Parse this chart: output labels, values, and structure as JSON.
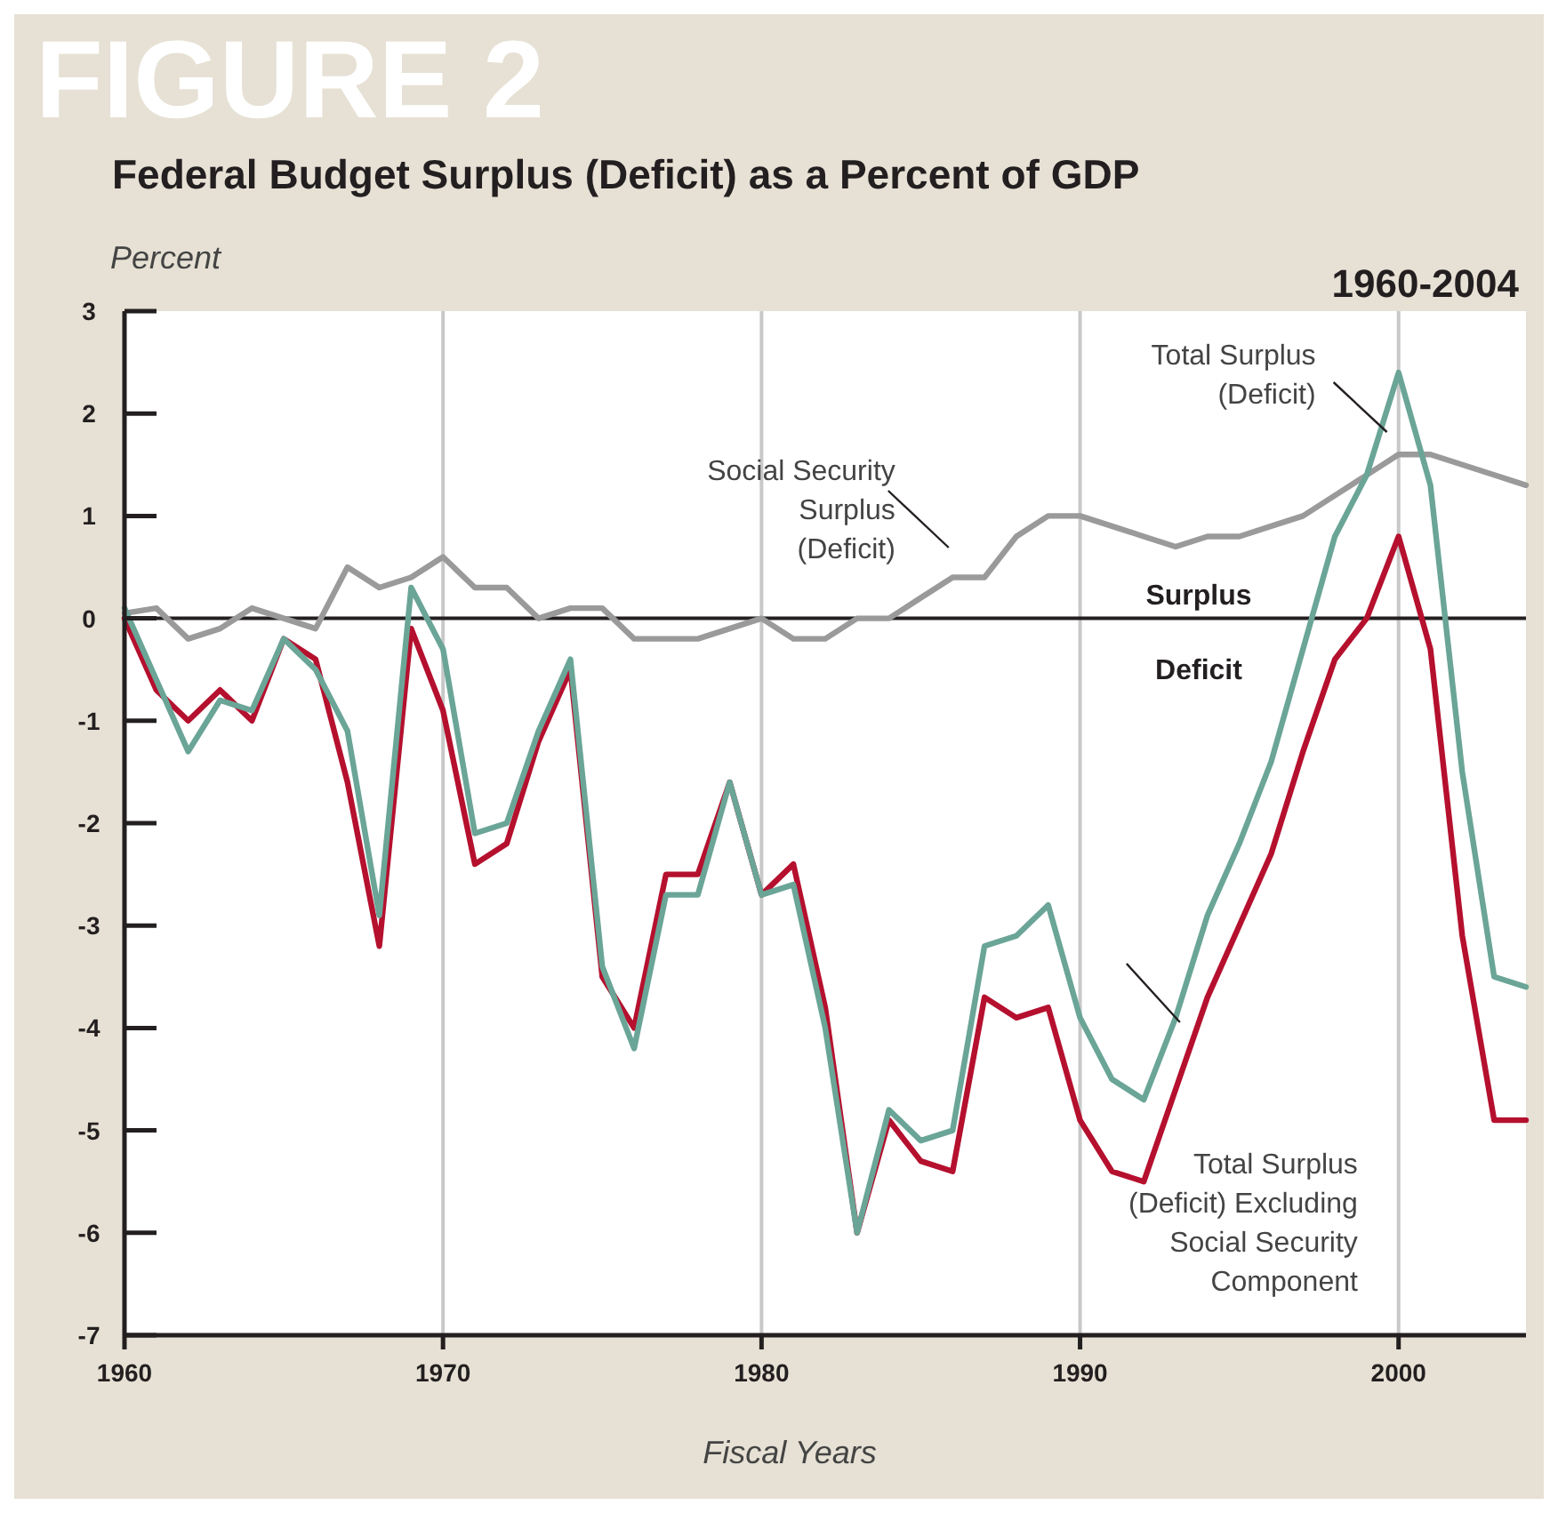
{
  "chart_data": {
    "type": "line",
    "title": "Federal Budget Surplus (Deficit) as a Percent of GDP",
    "subtitle": "1960-2004",
    "xlabel": "Fiscal Years",
    "ylabel": "Percent",
    "x": [
      1960,
      1961,
      1962,
      1963,
      1964,
      1965,
      1966,
      1967,
      1968,
      1969,
      1970,
      1971,
      1972,
      1973,
      1974,
      1975,
      1976,
      1977,
      1978,
      1979,
      1980,
      1981,
      1982,
      1983,
      1984,
      1985,
      1986,
      1987,
      1988,
      1989,
      1990,
      1991,
      1992,
      1993,
      1994,
      1995,
      1996,
      1997,
      1998,
      1999,
      2000,
      2001,
      2002,
      2003,
      2004
    ],
    "series": [
      {
        "name": "Social Security Surplus (Deficit)",
        "color": "#9a9a9a",
        "values": [
          0.05,
          0.1,
          -0.2,
          -0.1,
          0.1,
          0.0,
          -0.1,
          0.5,
          0.3,
          0.4,
          0.6,
          0.3,
          0.3,
          0.0,
          0.1,
          0.1,
          -0.2,
          -0.2,
          -0.2,
          -0.1,
          0.0,
          -0.2,
          -0.2,
          0.0,
          0.0,
          0.2,
          0.4,
          0.4,
          0.8,
          1.0,
          1.0,
          0.9,
          0.8,
          0.7,
          0.8,
          0.8,
          0.9,
          1.0,
          1.2,
          1.4,
          1.6,
          1.6,
          1.5,
          1.4,
          1.3
        ]
      },
      {
        "name": "Total Surplus (Deficit) Excluding Social Security Component",
        "color": "#b5102e",
        "values": [
          0.0,
          -0.7,
          -1.0,
          -0.7,
          -1.0,
          -0.2,
          -0.4,
          -1.6,
          -3.2,
          -0.1,
          -0.9,
          -2.4,
          -2.2,
          -1.2,
          -0.5,
          -3.5,
          -4.0,
          -2.5,
          -2.5,
          -1.6,
          -2.7,
          -2.4,
          -3.8,
          -6.0,
          -4.9,
          -5.3,
          -5.4,
          -3.7,
          -3.9,
          -3.8,
          -4.9,
          -5.4,
          -5.5,
          -4.6,
          -3.7,
          -3.0,
          -2.3,
          -1.3,
          -0.4,
          0.0,
          0.8,
          -0.3,
          -3.1,
          -4.9,
          -4.9
        ]
      },
      {
        "name": "Total Surplus (Deficit)",
        "color": "#6aa597",
        "values": [
          0.1,
          -0.6,
          -1.3,
          -0.8,
          -0.9,
          -0.2,
          -0.5,
          -1.1,
          -2.9,
          0.3,
          -0.3,
          -2.1,
          -2.0,
          -1.1,
          -0.4,
          -3.4,
          -4.2,
          -2.7,
          -2.7,
          -1.6,
          -2.7,
          -2.6,
          -4.0,
          -6.0,
          -4.8,
          -5.1,
          -5.0,
          -3.2,
          -3.1,
          -2.8,
          -3.9,
          -4.5,
          -4.7,
          -3.9,
          -2.9,
          -2.2,
          -1.4,
          -0.3,
          0.8,
          1.4,
          2.4,
          1.3,
          -1.5,
          -3.5,
          -3.6
        ]
      }
    ],
    "xlim": [
      1960,
      2004
    ],
    "xticks": [
      1960,
      1970,
      1980,
      1990,
      2000
    ],
    "ylim": [
      -7,
      3
    ],
    "yticks": [
      -7,
      -6,
      -5,
      -4,
      -3,
      -2,
      -1,
      0,
      1,
      2,
      3
    ],
    "grid": "x",
    "ref_lines": [
      {
        "axis": "y",
        "value": 0,
        "color": "#231f20"
      }
    ],
    "annotations": [
      "FIGURE 2",
      {
        "text": "Surplus",
        "x": 1993,
        "y": 0
      },
      {
        "text": "Deficit",
        "x": 1993,
        "y": 0
      }
    ]
  }
}
